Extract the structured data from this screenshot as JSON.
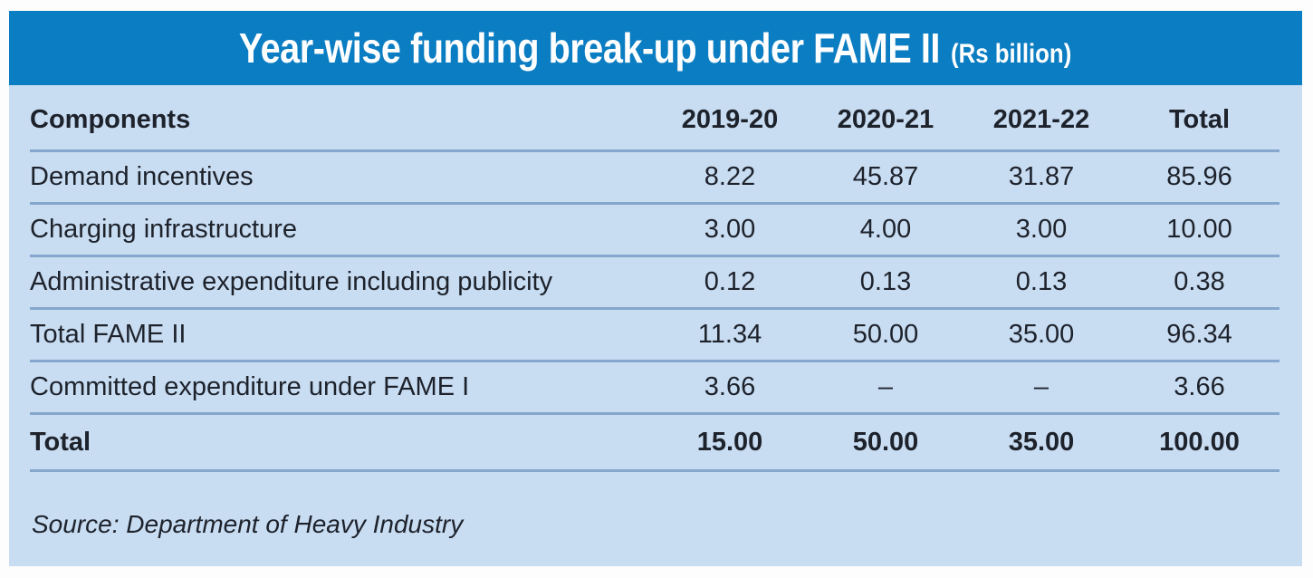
{
  "title": {
    "main": "Year-wise funding break-up under FAME II",
    "unit": "(Rs billion)"
  },
  "table": {
    "columns": [
      "Components",
      "2019-20",
      "2020-21",
      "2021-22",
      "Total"
    ],
    "rows": [
      {
        "label": "Demand incentives",
        "values": [
          "8.22",
          "45.87",
          "31.87",
          "85.96"
        ],
        "bold": false
      },
      {
        "label": "Charging infrastructure",
        "values": [
          "3.00",
          "4.00",
          "3.00",
          "10.00"
        ],
        "bold": false
      },
      {
        "label": "Administrative expenditure including publicity",
        "values": [
          "0.12",
          "0.13",
          "0.13",
          "0.38"
        ],
        "bold": false
      },
      {
        "label": "Total FAME II",
        "values": [
          "11.34",
          "50.00",
          "35.00",
          "96.34"
        ],
        "bold": false
      },
      {
        "label": "Committed expenditure under FAME I",
        "values": [
          "3.66",
          "–",
          "–",
          "3.66"
        ],
        "bold": false
      },
      {
        "label": "Total",
        "values": [
          "15.00",
          "50.00",
          "35.00",
          "100.00"
        ],
        "bold": true
      }
    ]
  },
  "source": "Source: Department of Heavy Industry",
  "colors": {
    "header_bg": "#0b7dc2",
    "body_bg": "#c8dcf2",
    "separator_line": "#85a6cd",
    "text": "#1d222b"
  },
  "chart_data": {
    "type": "table",
    "title": "Year-wise funding break-up under FAME II (Rs billion)",
    "columns": [
      "Components",
      "2019-20",
      "2020-21",
      "2021-22",
      "Total"
    ],
    "rows": [
      [
        "Demand incentives",
        8.22,
        45.87,
        31.87,
        85.96
      ],
      [
        "Charging infrastructure",
        3.0,
        4.0,
        3.0,
        10.0
      ],
      [
        "Administrative expenditure including publicity",
        0.12,
        0.13,
        0.13,
        0.38
      ],
      [
        "Total FAME II",
        11.34,
        50.0,
        35.0,
        96.34
      ],
      [
        "Committed expenditure under FAME I",
        3.66,
        null,
        null,
        3.66
      ],
      [
        "Total",
        15.0,
        50.0,
        35.0,
        100.0
      ]
    ],
    "source": "Source: Department of Heavy Industry"
  }
}
